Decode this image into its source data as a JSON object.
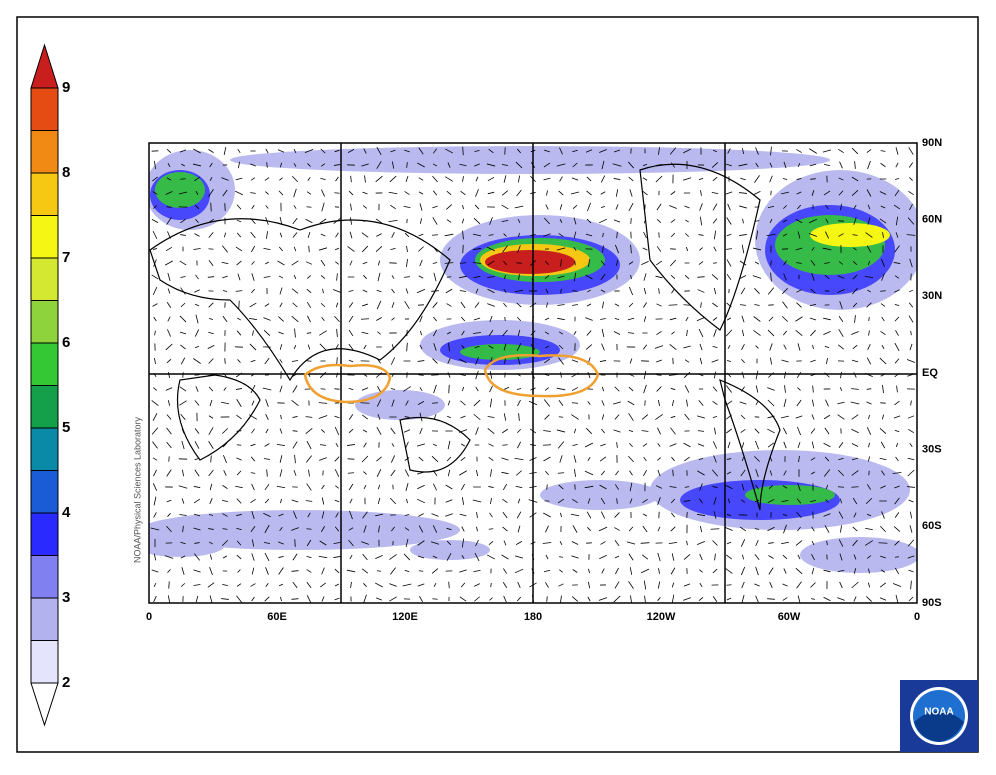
{
  "colorbar": {
    "ticks": [
      9,
      8,
      7,
      6,
      5,
      4,
      3,
      2
    ],
    "colors": [
      "#e4e4fc",
      "#b2b2ee",
      "#8080f0",
      "#2a2aff",
      "#1a5cd6",
      "#0b8aa8",
      "#14a04a",
      "#34c834",
      "#8ed23c",
      "#d4e832",
      "#f6f614",
      "#f6c814",
      "#f08a14",
      "#e44c14"
    ],
    "over_color": "#c81e1e",
    "under_color": "#ffffff"
  },
  "map": {
    "lon_labels": [
      "0",
      "60E",
      "120E",
      "180",
      "120W",
      "60W",
      "0"
    ],
    "lat_labels": [
      "90N",
      "60N",
      "30N",
      "EQ",
      "30S",
      "60S",
      "90S"
    ],
    "credit": "NOAA/Physical Sciences Laboratory"
  },
  "logo": {
    "text": "NOAA"
  }
}
